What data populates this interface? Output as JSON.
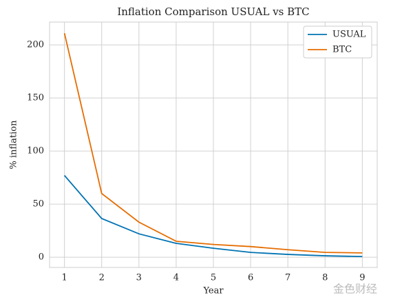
{
  "chart_data": {
    "type": "line",
    "title": "Inflation Comparison USUAL vs BTC",
    "x_label": "Year",
    "y_label": "% inflation",
    "x": [
      1,
      2,
      3,
      4,
      5,
      6,
      7,
      8,
      9
    ],
    "series": [
      {
        "name": "USUAL",
        "color": "#0072b2",
        "values": [
          77,
          36.4,
          22,
          13,
          8.4,
          4.5,
          2.6,
          1.3,
          0.6
        ]
      },
      {
        "name": "BTC",
        "color": "#e66c00",
        "values": [
          211,
          60,
          33,
          15,
          12,
          10,
          7,
          4.5,
          4
        ]
      }
    ],
    "xlim": [
      0.6,
      9.4
    ],
    "ylim": [
      -9.7,
      221.5
    ],
    "xticks": [
      1,
      2,
      3,
      4,
      5,
      6,
      7,
      8,
      9
    ],
    "yticks": [
      0,
      50,
      100,
      150,
      200
    ],
    "grid": true,
    "legend": "upper right",
    "watermark": "金色财经"
  }
}
